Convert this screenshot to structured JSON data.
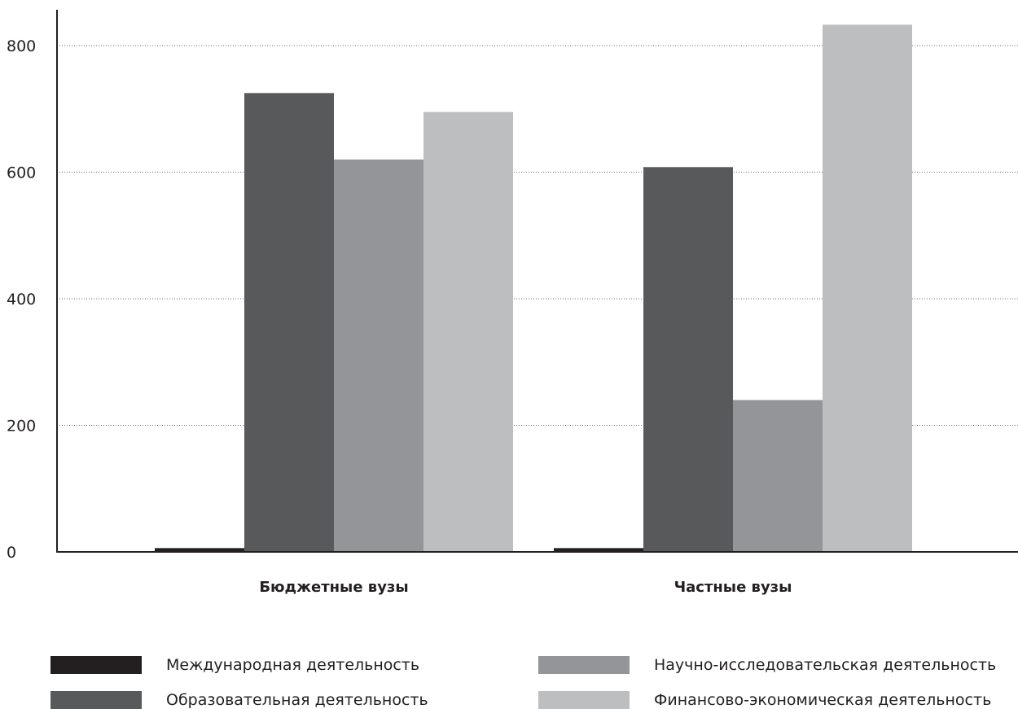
{
  "chart_data": {
    "type": "bar",
    "categories": [
      "Бюджетные вузы",
      "Частные вузы"
    ],
    "series": [
      {
        "name": "Международная деятельность",
        "values": [
          6,
          6
        ],
        "color": "#231f20"
      },
      {
        "name": "Образовательная деятельность",
        "values": [
          725,
          608
        ],
        "color": "#58595b"
      },
      {
        "name": "Научно-исследовательская деятельность",
        "values": [
          620,
          240
        ],
        "color": "#939598"
      },
      {
        "name": "Финансово-экономическая деятельность",
        "values": [
          695,
          833
        ],
        "color": "#bcbec0"
      }
    ],
    "yticks": [
      "0",
      "200",
      "400",
      "600",
      "800"
    ],
    "ylim": [
      0,
      860
    ],
    "grid": true,
    "legend_position": "bottom"
  }
}
